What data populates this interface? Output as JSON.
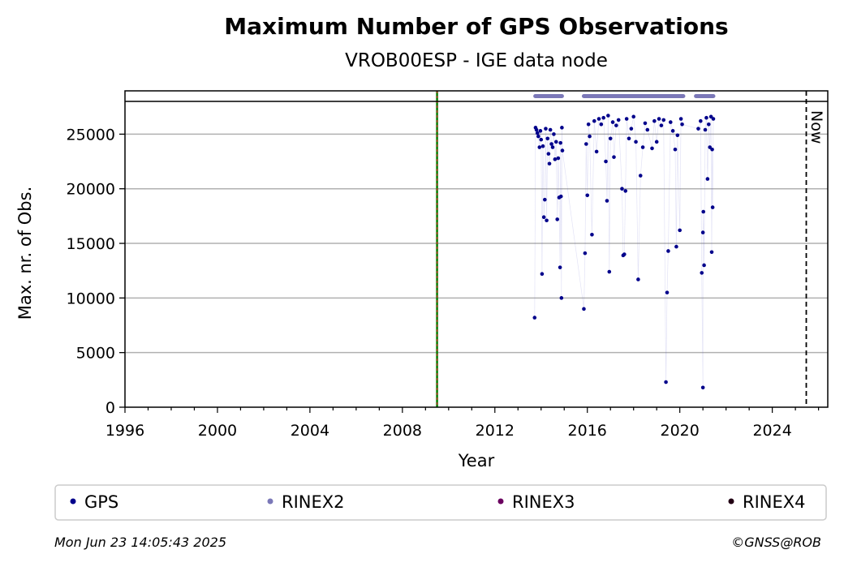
{
  "chart_data": {
    "type": "scatter",
    "title": "Maximum Number of GPS Observations",
    "subtitle": "VROB00ESP - IGE data node",
    "xlabel": "Year",
    "ylabel": "Max. nr. of Obs.",
    "xlim": [
      1996,
      2026.4
    ],
    "ylim": [
      0,
      29000
    ],
    "main_ylim": [
      0,
      28000
    ],
    "xticks": [
      "1996",
      "2000",
      "2004",
      "2008",
      "2012",
      "2016",
      "2020",
      "2024"
    ],
    "yticks": [
      "0",
      "5000",
      "10000",
      "15000",
      "20000",
      "25000"
    ],
    "grid": "horizontal",
    "legend_placement": "bottom",
    "now_label": "Now",
    "now_year": 2025.47,
    "vertical_line_year": 2009.5,
    "series": [
      {
        "name": "GPS",
        "color": "#00008b",
        "points": [
          [
            2013.72,
            8200
          ],
          [
            2013.76,
            25600
          ],
          [
            2013.8,
            25400
          ],
          [
            2013.84,
            25100
          ],
          [
            2013.88,
            24800
          ],
          [
            2013.93,
            23800
          ],
          [
            2013.97,
            25300
          ],
          [
            2014.0,
            24500
          ],
          [
            2014.04,
            12200
          ],
          [
            2014.08,
            23900
          ],
          [
            2014.12,
            17400
          ],
          [
            2014.16,
            19000
          ],
          [
            2014.2,
            25500
          ],
          [
            2014.24,
            17100
          ],
          [
            2014.28,
            24600
          ],
          [
            2014.32,
            23200
          ],
          [
            2014.36,
            22300
          ],
          [
            2014.4,
            25400
          ],
          [
            2014.45,
            24100
          ],
          [
            2014.5,
            23800
          ],
          [
            2014.55,
            25000
          ],
          [
            2014.6,
            22700
          ],
          [
            2014.65,
            24300
          ],
          [
            2014.7,
            17200
          ],
          [
            2014.74,
            22800
          ],
          [
            2014.78,
            19200
          ],
          [
            2014.82,
            12800
          ],
          [
            2014.84,
            24200
          ],
          [
            2014.86,
            19300
          ],
          [
            2014.88,
            10000
          ],
          [
            2014.9,
            25600
          ],
          [
            2014.92,
            23500
          ],
          [
            2015.85,
            9000
          ],
          [
            2015.9,
            14100
          ],
          [
            2015.95,
            24100
          ],
          [
            2016.0,
            19400
          ],
          [
            2016.05,
            25900
          ],
          [
            2016.1,
            24800
          ],
          [
            2016.2,
            15800
          ],
          [
            2016.3,
            26200
          ],
          [
            2016.4,
            23400
          ],
          [
            2016.5,
            26400
          ],
          [
            2016.6,
            25900
          ],
          [
            2016.7,
            26500
          ],
          [
            2016.8,
            22500
          ],
          [
            2016.85,
            18900
          ],
          [
            2016.9,
            26700
          ],
          [
            2016.95,
            12400
          ],
          [
            2017.0,
            24600
          ],
          [
            2017.1,
            26100
          ],
          [
            2017.15,
            22900
          ],
          [
            2017.25,
            25800
          ],
          [
            2017.35,
            26300
          ],
          [
            2017.5,
            20000
          ],
          [
            2017.55,
            13900
          ],
          [
            2017.6,
            14000
          ],
          [
            2017.65,
            19800
          ],
          [
            2017.7,
            26400
          ],
          [
            2017.8,
            24600
          ],
          [
            2017.9,
            25500
          ],
          [
            2018.0,
            26600
          ],
          [
            2018.1,
            24300
          ],
          [
            2018.2,
            11700
          ],
          [
            2018.3,
            21200
          ],
          [
            2018.4,
            23800
          ],
          [
            2018.5,
            26000
          ],
          [
            2018.6,
            25400
          ],
          [
            2018.8,
            23700
          ],
          [
            2018.9,
            26200
          ],
          [
            2019.0,
            24300
          ],
          [
            2019.1,
            26400
          ],
          [
            2019.2,
            25800
          ],
          [
            2019.3,
            26300
          ],
          [
            2019.4,
            2300
          ],
          [
            2019.45,
            10500
          ],
          [
            2019.5,
            14300
          ],
          [
            2019.6,
            26100
          ],
          [
            2019.7,
            25300
          ],
          [
            2019.8,
            23600
          ],
          [
            2019.85,
            14700
          ],
          [
            2019.9,
            24900
          ],
          [
            2020.0,
            16200
          ],
          [
            2020.05,
            26400
          ],
          [
            2020.1,
            25900
          ],
          [
            2020.8,
            25500
          ],
          [
            2020.9,
            26200
          ],
          [
            2020.95,
            12300
          ],
          [
            2021.0,
            1800
          ],
          [
            2021.0,
            16000
          ],
          [
            2021.02,
            17900
          ],
          [
            2021.05,
            13000
          ],
          [
            2021.1,
            25400
          ],
          [
            2021.15,
            26500
          ],
          [
            2021.2,
            20900
          ],
          [
            2021.25,
            25900
          ],
          [
            2021.3,
            23800
          ],
          [
            2021.35,
            26600
          ],
          [
            2021.38,
            14200
          ],
          [
            2021.4,
            23600
          ],
          [
            2021.42,
            18300
          ],
          [
            2021.45,
            26400
          ]
        ]
      },
      {
        "name": "RINEX2",
        "color": "#7b78b8",
        "ranges": [
          [
            2013.75,
            2014.9
          ],
          [
            2015.85,
            2020.15
          ],
          [
            2020.7,
            2021.45
          ]
        ]
      },
      {
        "name": "RINEX3",
        "color": "#6a005f"
      },
      {
        "name": "RINEX4",
        "color": "#220014"
      }
    ]
  },
  "footer": {
    "timestamp": "Mon Jun 23 14:05:43 2025",
    "credit": "©GNSS@ROB"
  }
}
